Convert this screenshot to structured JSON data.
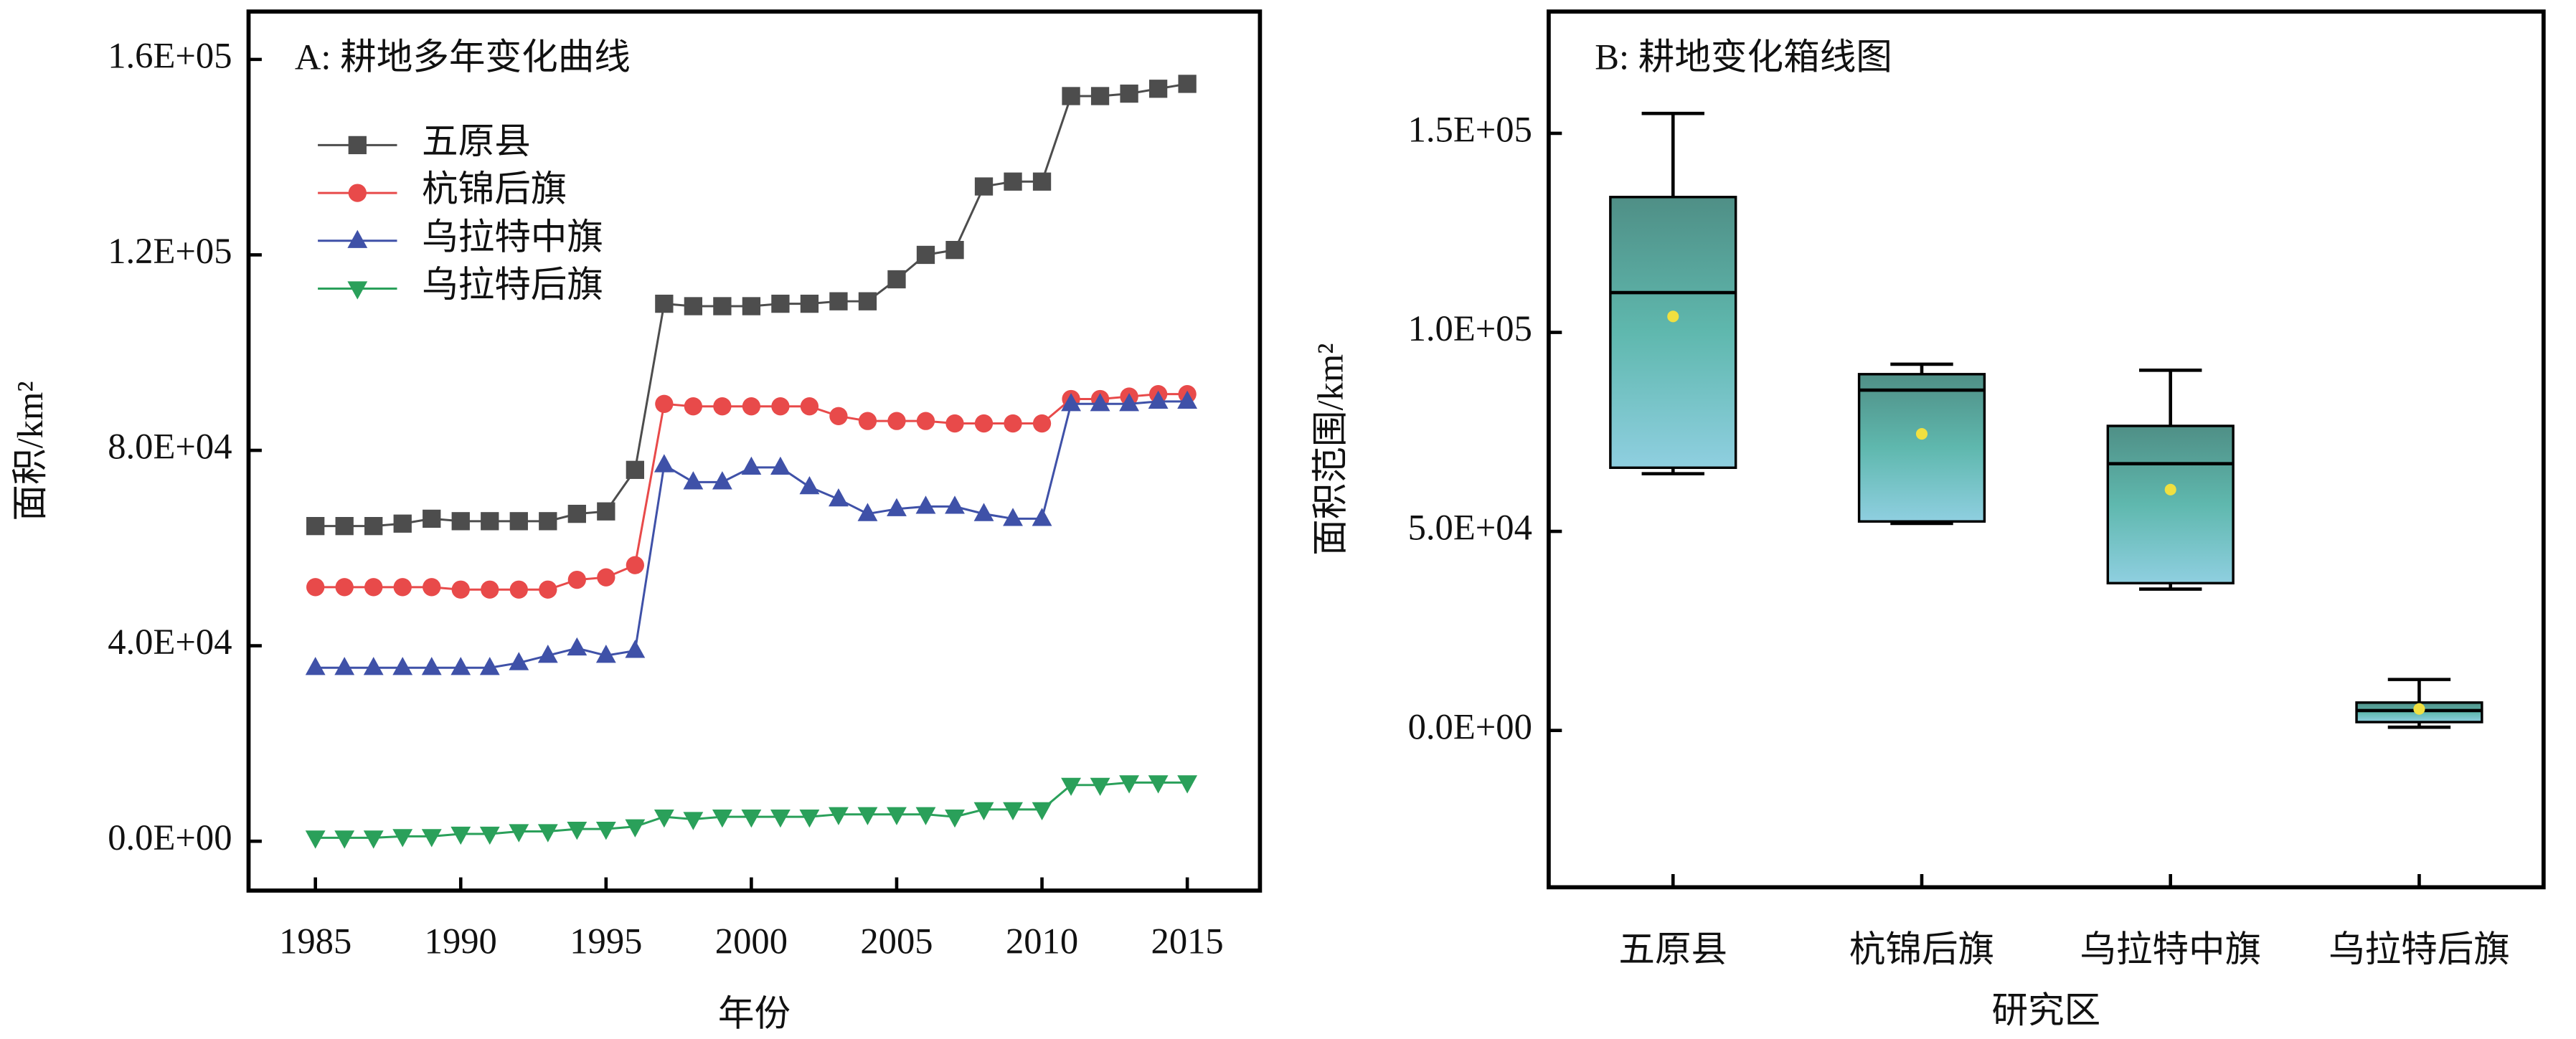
{
  "chart_data": [
    {
      "type": "line",
      "title": "A: 耕地多年变化曲线",
      "xlabel": "年份",
      "ylabel": "面积/km²",
      "x": [
        1985,
        1986,
        1987,
        1988,
        1989,
        1990,
        1991,
        1992,
        1993,
        1994,
        1995,
        1996,
        1997,
        1998,
        1999,
        2000,
        2001,
        2002,
        2003,
        2004,
        2005,
        2006,
        2007,
        2008,
        2009,
        2010,
        2011,
        2012,
        2013,
        2014,
        2015
      ],
      "xlim": [
        1982.7,
        2017.5
      ],
      "xticks": [
        1985,
        1990,
        1995,
        2000,
        2005,
        2010,
        2015
      ],
      "ylim": [
        -10100,
        169800
      ],
      "yticks": [
        {
          "value": 0,
          "label": "0.0E+00"
        },
        {
          "value": 40000,
          "label": "4.0E+04"
        },
        {
          "value": 80000,
          "label": "8.0E+04"
        },
        {
          "value": 120000,
          "label": "1.2E+05"
        },
        {
          "value": 160000,
          "label": "1.6E+05"
        }
      ],
      "legend": "upper left",
      "series": [
        {
          "name": "五原县",
          "color": "#4d4d4d",
          "marker": "square",
          "values": [
            64500,
            64500,
            64500,
            65000,
            66000,
            65500,
            65500,
            65500,
            65500,
            67000,
            67500,
            76000,
            110000,
            109500,
            109500,
            109500,
            110000,
            110000,
            110500,
            110500,
            115000,
            120000,
            121000,
            134000,
            135000,
            135000,
            152500,
            152500,
            153000,
            154000,
            155000
          ]
        },
        {
          "name": "杭锦后旗",
          "color": "#e84a4a",
          "marker": "circle",
          "values": [
            52000,
            52000,
            52000,
            52000,
            52000,
            51500,
            51500,
            51500,
            51500,
            53500,
            54000,
            56500,
            89500,
            89000,
            89000,
            89000,
            89000,
            89000,
            87000,
            86000,
            86000,
            86000,
            85500,
            85500,
            85500,
            85500,
            90500,
            90500,
            91000,
            91500,
            91500
          ]
        },
        {
          "name": "乌拉特中旗",
          "color": "#3f51a8",
          "marker": "triangle-up",
          "values": [
            35500,
            35500,
            35500,
            35500,
            35500,
            35500,
            35500,
            36500,
            38000,
            39500,
            38000,
            39000,
            77000,
            73500,
            73500,
            76500,
            76500,
            72500,
            70000,
            67000,
            68000,
            68500,
            68500,
            67000,
            66000,
            66000,
            89500,
            89500,
            89500,
            90000,
            90000
          ]
        },
        {
          "name": "乌拉特后旗",
          "color": "#2aa05a",
          "marker": "triangle-down",
          "values": [
            700,
            700,
            700,
            1000,
            1000,
            1500,
            1500,
            2000,
            2000,
            2500,
            2500,
            3000,
            5000,
            4500,
            5000,
            5000,
            5000,
            5000,
            5500,
            5500,
            5500,
            5500,
            5000,
            6500,
            6500,
            6500,
            11500,
            11500,
            12000,
            12000,
            12000
          ]
        }
      ]
    },
    {
      "type": "box",
      "title": "B: 耕地变化箱线图",
      "xlabel": "研究区",
      "ylabel": "面积范围/km²",
      "categories": [
        "五原县",
        "杭锦后旗",
        "乌拉特中旗",
        "乌拉特后旗"
      ],
      "max": [
        155000,
        92000,
        90500,
        12800
      ],
      "q3": [
        134000,
        89500,
        76500,
        7000
      ],
      "median": [
        110000,
        85500,
        67000,
        5000
      ],
      "mean": [
        104000,
        74500,
        60500,
        5400
      ],
      "q1": [
        66000,
        52500,
        37000,
        2100
      ],
      "min": [
        64500,
        52000,
        35500,
        800
      ],
      "color": "#5fb8b8",
      "mean_color": "#f0e040",
      "ylim": [
        -39400,
        180600
      ],
      "yticks": [
        {
          "value": 0,
          "label": "0.0E+00"
        },
        {
          "value": 50000,
          "label": "5.0E+04"
        },
        {
          "value": 100000,
          "label": "1.0E+05"
        },
        {
          "value": 150000,
          "label": "1.5E+05"
        }
      ]
    }
  ]
}
